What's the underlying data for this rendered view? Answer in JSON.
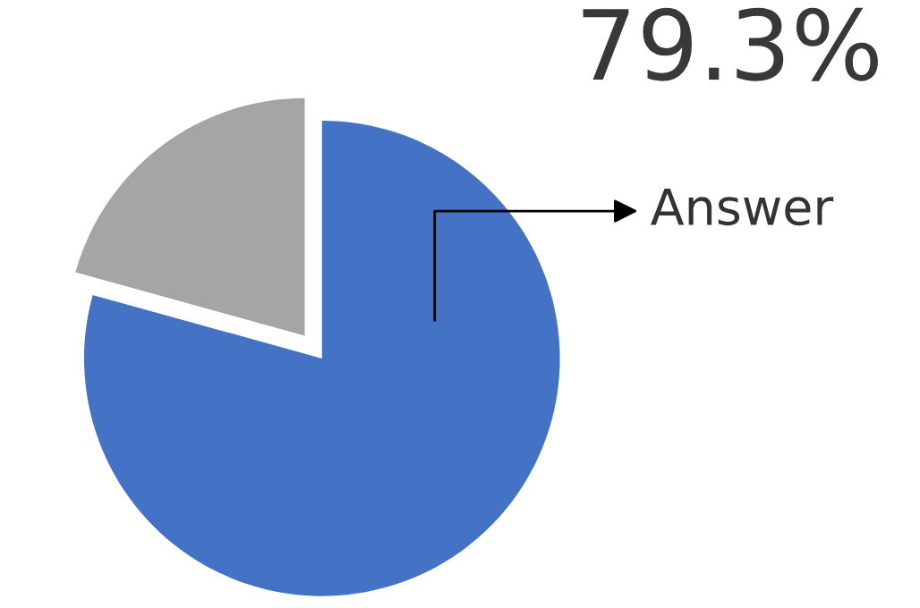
{
  "chart_data": {
    "type": "pie",
    "categories": [
      "Answer",
      null
    ],
    "values": [
      79.3,
      20.7
    ],
    "colors": [
      "#4472c4",
      "#a5a5a5"
    ],
    "value_labels": [
      "79.3%",
      null
    ]
  }
}
